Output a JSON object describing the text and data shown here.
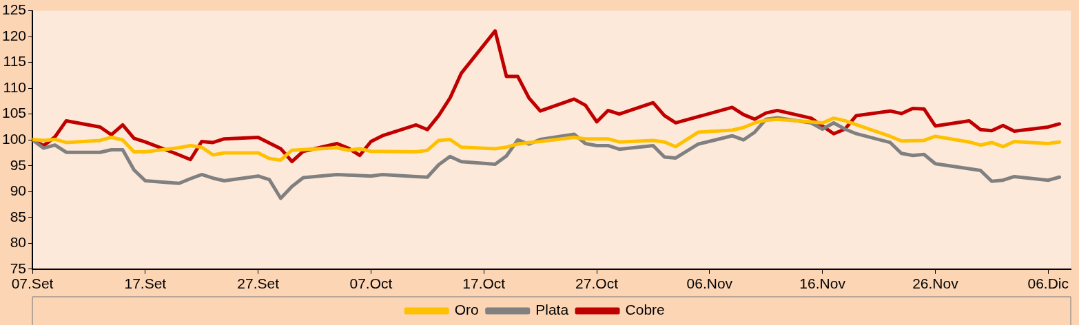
{
  "chart_data": {
    "type": "line",
    "xlim": [
      "--09-07",
      "--12-08"
    ],
    "xticks": [
      {
        "value": "--09-07",
        "label": "07.Set"
      },
      {
        "value": "--09-17",
        "label": "17.Set"
      },
      {
        "value": "--09-27",
        "label": "27.Set"
      },
      {
        "value": "--10-07",
        "label": "07.Oct"
      },
      {
        "value": "--10-17",
        "label": "17.Oct"
      },
      {
        "value": "--10-27",
        "label": "27.Oct"
      },
      {
        "value": "--11-06",
        "label": "06.Nov"
      },
      {
        "value": "--11-16",
        "label": "16.Nov"
      },
      {
        "value": "--11-26",
        "label": "26.Nov"
      },
      {
        "value": "--12-06",
        "label": "06.Dic"
      }
    ],
    "ylim": [
      75,
      125
    ],
    "yticks": [
      75,
      80,
      85,
      90,
      95,
      100,
      105,
      110,
      115,
      120,
      125
    ],
    "legend": "bottom",
    "marker": "none",
    "line_style": "solid",
    "series": [
      {
        "name": "Oro",
        "color": "#ffc000",
        "x": [
          "--09-07",
          "--09-08",
          "--09-09",
          "--09-10",
          "--09-13",
          "--09-14",
          "--09-15",
          "--09-16",
          "--09-17",
          "--09-20",
          "--09-21",
          "--09-22",
          "--09-23",
          "--09-24",
          "--09-27",
          "--09-28",
          "--09-29",
          "--09-30",
          "--10-04",
          "--10-05",
          "--10-06",
          "--10-07",
          "--10-11",
          "--10-12",
          "--10-13",
          "--10-14",
          "--10-15",
          "--10-18",
          "--10-19",
          "--10-20",
          "--10-21",
          "--10-22",
          "--10-25",
          "--10-26",
          "--10-28",
          "--10-29",
          "--11-01",
          "--11-02",
          "--11-03",
          "--11-05",
          "--11-08",
          "--11-09",
          "--11-10",
          "--11-11",
          "--11-12",
          "--11-15",
          "--11-16",
          "--11-17",
          "--11-18",
          "--11-22",
          "--11-23",
          "--11-25",
          "--11-26",
          "--11-29",
          "--11-30",
          "--12-01",
          "--12-02",
          "--12-03",
          "--12-06",
          "--12-07"
        ],
        "values": [
          100.1,
          99.9,
          100.1,
          99.5,
          99.9,
          100.5,
          100,
          97.7,
          97.7,
          98.5,
          98.9,
          98.6,
          97.1,
          97.5,
          97.5,
          96.4,
          96.1,
          98,
          98.5,
          98,
          98.3,
          97.8,
          97.7,
          98,
          99.9,
          100.1,
          98.6,
          98.3,
          98.6,
          99.2,
          99.5,
          99.7,
          100.5,
          100.2,
          100.2,
          99.6,
          99.9,
          99.6,
          98.7,
          101.5,
          101.9,
          102.4,
          103.3,
          103.8,
          104,
          103.5,
          103.3,
          104.2,
          103.7,
          100.7,
          99.8,
          99.9,
          100.7,
          99.6,
          99,
          99.5,
          98.7,
          99.7,
          99.3,
          99.6
        ]
      },
      {
        "name": "Plata",
        "color": "#808080",
        "x": [
          "--09-07",
          "--09-08",
          "--09-09",
          "--09-10",
          "--09-13",
          "--09-14",
          "--09-15",
          "--09-16",
          "--09-17",
          "--09-20",
          "--09-21",
          "--09-22",
          "--09-23",
          "--09-24",
          "--09-27",
          "--09-28",
          "--09-29",
          "--09-30",
          "--10-01",
          "--10-04",
          "--10-07",
          "--10-08",
          "--10-11",
          "--10-12",
          "--10-13",
          "--10-14",
          "--10-15",
          "--10-18",
          "--10-19",
          "--10-20",
          "--10-21",
          "--10-22",
          "--10-25",
          "--10-26",
          "--10-27",
          "--10-28",
          "--10-29",
          "--11-01",
          "--11-02",
          "--11-03",
          "--11-05",
          "--11-08",
          "--11-09",
          "--11-10",
          "--11-11",
          "--11-12",
          "--11-15",
          "--11-16",
          "--11-17",
          "--11-18",
          "--11-19",
          "--11-22",
          "--11-23",
          "--11-24",
          "--11-25",
          "--11-26",
          "--11-30",
          "--12-01",
          "--12-02",
          "--12-03",
          "--12-06",
          "--12-07"
        ],
        "values": [
          100,
          98.4,
          99,
          97.6,
          97.6,
          98.1,
          98.1,
          94.2,
          92.1,
          91.6,
          92.5,
          93.3,
          92.6,
          92.1,
          93,
          92.3,
          88.7,
          91,
          92.7,
          93.3,
          93,
          93.3,
          92.9,
          92.8,
          95.2,
          96.8,
          95.8,
          95.3,
          96.9,
          100,
          99.2,
          100.1,
          101.1,
          99.3,
          98.9,
          98.9,
          98.2,
          98.9,
          96.7,
          96.5,
          99.2,
          100.8,
          100,
          101.5,
          104,
          104.3,
          103.3,
          102.1,
          103.3,
          102.1,
          101.2,
          99.5,
          97.4,
          97,
          97.2,
          95.4,
          94.1,
          92,
          92.2,
          92.9,
          92.2,
          92.8
        ]
      },
      {
        "name": "Cobre",
        "color": "#c00000",
        "x": [
          "--09-07",
          "--09-08",
          "--09-09",
          "--09-10",
          "--09-13",
          "--09-14",
          "--09-15",
          "--09-16",
          "--09-17",
          "--09-20",
          "--09-21",
          "--09-22",
          "--09-23",
          "--09-24",
          "--09-27",
          "--09-28",
          "--09-29",
          "--09-30",
          "--10-01",
          "--10-04",
          "--10-05",
          "--10-06",
          "--10-07",
          "--10-08",
          "--10-11",
          "--10-12",
          "--10-13",
          "--10-14",
          "--10-15",
          "--10-18",
          "--10-19",
          "--10-20",
          "--10-21",
          "--10-22",
          "--10-25",
          "--10-26",
          "--10-27",
          "--10-28",
          "--10-29",
          "--11-01",
          "--11-02",
          "--11-03",
          "--11-08",
          "--11-09",
          "--11-10",
          "--11-11",
          "--11-12",
          "--11-15",
          "--11-17",
          "--11-18",
          "--11-19",
          "--11-22",
          "--11-23",
          "--11-24",
          "--11-25",
          "--11-26",
          "--11-29",
          "--11-30",
          "--12-01",
          "--12-02",
          "--12-03",
          "--12-06",
          "--12-07"
        ],
        "values": [
          100,
          98.9,
          100.6,
          103.7,
          102.5,
          101,
          102.9,
          100.3,
          99.6,
          97.1,
          96.2,
          99.7,
          99.5,
          100.2,
          100.5,
          99.4,
          98.3,
          95.8,
          97.8,
          99.3,
          98.4,
          97,
          99.7,
          100.8,
          102.9,
          102,
          104.7,
          108.1,
          112.9,
          121.1,
          112.3,
          112.3,
          108.1,
          105.6,
          107.9,
          106.7,
          103.5,
          105.7,
          105,
          107.2,
          104.7,
          103.3,
          106.3,
          104.9,
          104,
          105.2,
          105.7,
          104.2,
          101.2,
          102.1,
          104.7,
          105.6,
          105.1,
          106.1,
          106,
          102.7,
          103.7,
          102,
          101.8,
          102.8,
          101.7,
          102.5,
          103.1
        ]
      }
    ]
  }
}
